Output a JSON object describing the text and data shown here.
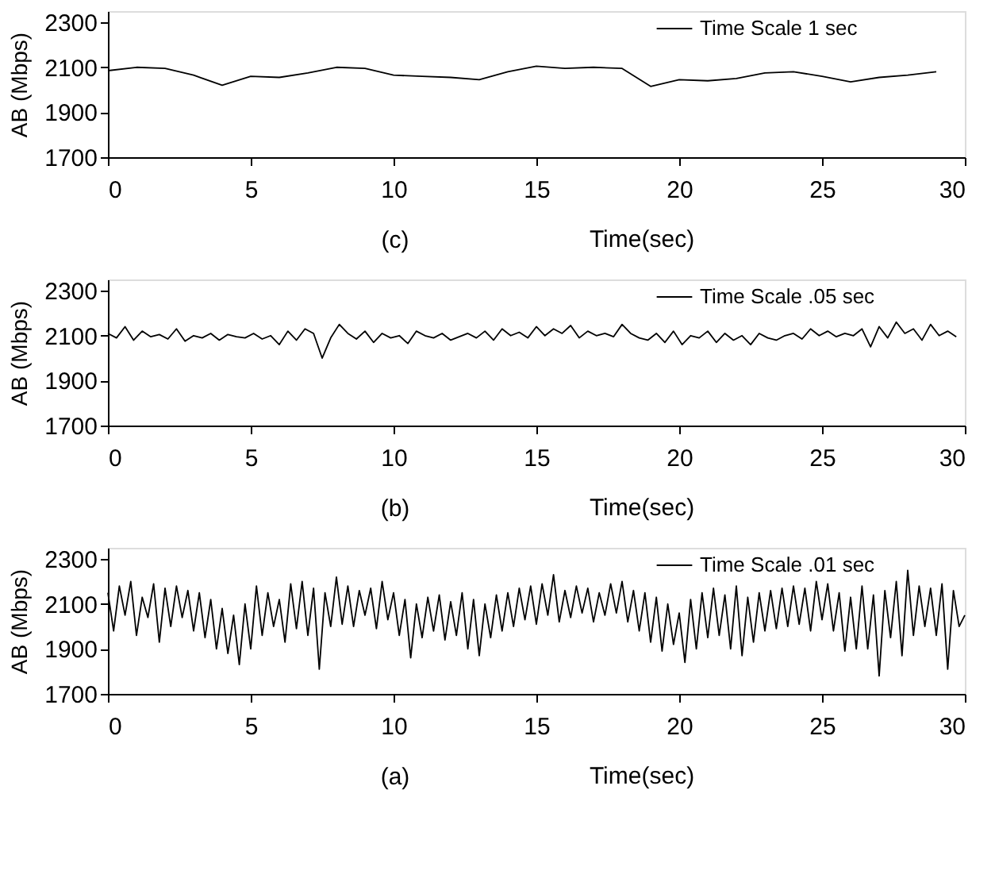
{
  "chart_data": [
    {
      "type": "line",
      "xlabel": "Time(sec)",
      "ylabel": "AB (Mbps)",
      "annotations": [
        "(c)"
      ],
      "xlim": [
        0,
        30
      ],
      "xticks": [
        0,
        5,
        10,
        15,
        20,
        25,
        30
      ],
      "ylim": [
        1700,
        2350
      ],
      "yticks": [
        1700,
        1900,
        2100,
        2300
      ],
      "grid": false,
      "legend": "top right",
      "line_style": "solid",
      "marker": "none",
      "x": [
        0,
        1,
        2,
        3,
        4,
        5,
        6,
        7,
        8,
        9,
        10,
        11,
        12,
        13,
        14,
        15,
        16,
        17,
        18,
        19,
        20,
        21,
        22,
        23,
        24,
        25,
        26,
        27,
        28,
        29
      ],
      "series": [
        {
          "name": "Time Scale 1 sec",
          "color": "#000000",
          "values": [
            2085,
            2100,
            2095,
            2065,
            2020,
            2060,
            2055,
            2075,
            2100,
            2095,
            2065,
            2060,
            2055,
            2045,
            2080,
            2105,
            2095,
            2100,
            2095,
            2015,
            2045,
            2040,
            2050,
            2075,
            2080,
            2060,
            2035,
            2055,
            2065,
            2080
          ]
        }
      ]
    },
    {
      "type": "line",
      "xlabel": "Time(sec)",
      "ylabel": "AB (Mbps)",
      "annotations": [
        "(b)"
      ],
      "xlim": [
        0,
        30
      ],
      "xticks": [
        0,
        5,
        10,
        15,
        20,
        25,
        30
      ],
      "ylim": [
        1700,
        2350
      ],
      "yticks": [
        1700,
        1900,
        2100,
        2300
      ],
      "grid": false,
      "legend": "top right",
      "line_style": "solid",
      "marker": "none",
      "x": [
        0,
        0.3,
        0.6,
        0.9,
        1.2,
        1.5,
        1.8,
        2.1,
        2.4,
        2.7,
        3,
        3.3,
        3.6,
        3.9,
        4.2,
        4.5,
        4.8,
        5.1,
        5.4,
        5.7,
        6,
        6.3,
        6.6,
        6.9,
        7.2,
        7.5,
        7.8,
        8.1,
        8.4,
        8.7,
        9,
        9.3,
        9.6,
        9.9,
        10.2,
        10.5,
        10.8,
        11.1,
        11.4,
        11.7,
        12,
        12.3,
        12.6,
        12.9,
        13.2,
        13.5,
        13.8,
        14.1,
        14.4,
        14.7,
        15,
        15.3,
        15.6,
        15.9,
        16.2,
        16.5,
        16.8,
        17.1,
        17.4,
        17.7,
        18,
        18.3,
        18.6,
        18.9,
        19.2,
        19.5,
        19.8,
        20.1,
        20.4,
        20.7,
        21,
        21.3,
        21.6,
        21.9,
        22.2,
        22.5,
        22.8,
        23.1,
        23.4,
        23.7,
        24,
        24.3,
        24.6,
        24.9,
        25.2,
        25.5,
        25.8,
        26.1,
        26.4,
        26.7,
        27,
        27.3,
        27.6,
        27.9,
        28.2,
        28.5,
        28.8,
        29.1,
        29.4,
        29.7
      ],
      "series": [
        {
          "name": "Time Scale .05 sec",
          "color": "#000000",
          "values": [
            2110,
            2090,
            2140,
            2080,
            2120,
            2095,
            2105,
            2085,
            2130,
            2075,
            2100,
            2090,
            2110,
            2080,
            2105,
            2095,
            2090,
            2110,
            2085,
            2100,
            2060,
            2120,
            2080,
            2130,
            2110,
            2000,
            2090,
            2150,
            2110,
            2085,
            2120,
            2070,
            2110,
            2090,
            2100,
            2065,
            2120,
            2100,
            2090,
            2110,
            2080,
            2095,
            2110,
            2090,
            2120,
            2080,
            2130,
            2100,
            2115,
            2090,
            2140,
            2100,
            2130,
            2110,
            2145,
            2090,
            2120,
            2100,
            2110,
            2095,
            2150,
            2110,
            2090,
            2080,
            2110,
            2070,
            2120,
            2060,
            2100,
            2090,
            2120,
            2070,
            2110,
            2080,
            2100,
            2060,
            2110,
            2090,
            2080,
            2100,
            2110,
            2085,
            2130,
            2100,
            2120,
            2095,
            2110,
            2100,
            2130,
            2050,
            2140,
            2090,
            2160,
            2110,
            2130,
            2080,
            2150,
            2100,
            2120,
            2095
          ]
        }
      ]
    },
    {
      "type": "line",
      "xlabel": "Time(sec)",
      "ylabel": "AB (Mbps)",
      "annotations": [
        "(a)"
      ],
      "xlim": [
        0,
        30
      ],
      "xticks": [
        0,
        5,
        10,
        15,
        20,
        25,
        30
      ],
      "ylim": [
        1700,
        2350
      ],
      "yticks": [
        1700,
        1900,
        2100,
        2300
      ],
      "grid": false,
      "legend": "top right",
      "line_style": "solid",
      "marker": "none",
      "x": [
        0,
        0.2,
        0.4,
        0.6,
        0.8,
        1,
        1.2,
        1.4,
        1.6,
        1.8,
        2,
        2.2,
        2.4,
        2.6,
        2.8,
        3,
        3.2,
        3.4,
        3.6,
        3.8,
        4,
        4.2,
        4.4,
        4.6,
        4.8,
        5,
        5.2,
        5.4,
        5.6,
        5.8,
        6,
        6.2,
        6.4,
        6.6,
        6.8,
        7,
        7.2,
        7.4,
        7.6,
        7.8,
        8,
        8.2,
        8.4,
        8.6,
        8.8,
        9,
        9.2,
        9.4,
        9.6,
        9.8,
        10,
        10.2,
        10.4,
        10.6,
        10.8,
        11,
        11.2,
        11.4,
        11.6,
        11.8,
        12,
        12.2,
        12.4,
        12.6,
        12.8,
        13,
        13.2,
        13.4,
        13.6,
        13.8,
        14,
        14.2,
        14.4,
        14.6,
        14.8,
        15,
        15.2,
        15.4,
        15.6,
        15.8,
        16,
        16.2,
        16.4,
        16.6,
        16.8,
        17,
        17.2,
        17.4,
        17.6,
        17.8,
        18,
        18.2,
        18.4,
        18.6,
        18.8,
        19,
        19.2,
        19.4,
        19.6,
        19.8,
        20,
        20.2,
        20.4,
        20.6,
        20.8,
        21,
        21.2,
        21.4,
        21.6,
        21.8,
        22,
        22.2,
        22.4,
        22.6,
        22.8,
        23,
        23.2,
        23.4,
        23.6,
        23.8,
        24,
        24.2,
        24.4,
        24.6,
        24.8,
        25,
        25.2,
        25.4,
        25.6,
        25.8,
        26,
        26.2,
        26.4,
        26.6,
        26.8,
        27,
        27.2,
        27.4,
        27.6,
        27.8,
        28,
        28.2,
        28.4,
        28.6,
        28.8,
        29,
        29.2,
        29.4,
        29.6,
        29.8,
        30
      ],
      "series": [
        {
          "name": "Time Scale .01 sec",
          "color": "#000000",
          "values": [
            2150,
            1980,
            2180,
            2050,
            2200,
            1960,
            2130,
            2040,
            2190,
            1930,
            2170,
            2000,
            2180,
            2040,
            2160,
            1980,
            2150,
            1950,
            2120,
            1900,
            2080,
            1880,
            2050,
            1830,
            2100,
            1900,
            2180,
            1960,
            2150,
            2000,
            2120,
            1930,
            2190,
            1990,
            2200,
            1960,
            2170,
            1810,
            2150,
            2000,
            2220,
            2010,
            2180,
            2000,
            2160,
            2050,
            2170,
            1990,
            2200,
            2030,
            2150,
            1960,
            2120,
            1860,
            2100,
            1950,
            2130,
            1980,
            2140,
            1940,
            2110,
            1960,
            2150,
            1900,
            2120,
            1870,
            2100,
            1950,
            2140,
            1980,
            2150,
            2000,
            2170,
            2030,
            2180,
            2010,
            2190,
            2050,
            2230,
            2020,
            2160,
            2040,
            2180,
            2060,
            2170,
            2020,
            2150,
            2050,
            2190,
            2060,
            2200,
            2020,
            2160,
            1980,
            2150,
            1930,
            2130,
            1890,
            2100,
            1920,
            2060,
            1840,
            2120,
            1900,
            2150,
            1950,
            2170,
            1960,
            2140,
            1900,
            2180,
            1870,
            2130,
            1930,
            2150,
            1980,
            2160,
            1990,
            2170,
            2000,
            2180,
            2010,
            2170,
            1980,
            2200,
            2030,
            2190,
            1980,
            2150,
            1890,
            2130,
            1900,
            2180,
            1900,
            2140,
            1780,
            2160,
            1950,
            2200,
            1870,
            2250,
            1960,
            2180,
            2000,
            2170,
            1960,
            2190,
            1810,
            2160,
            2000,
            2050
          ]
        }
      ]
    }
  ]
}
